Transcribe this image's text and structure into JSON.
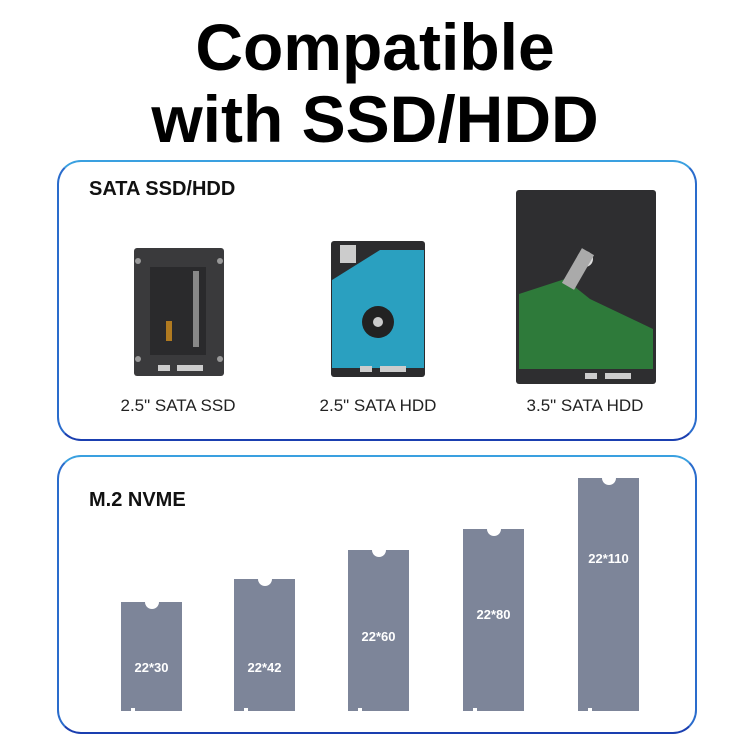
{
  "title": {
    "line1": "Compatible",
    "line2": "with SSD/HDD"
  },
  "sata": {
    "heading": "SATA SSD/HDD",
    "drives": [
      {
        "label": "2.5\" SATA SSD",
        "icon": "ssd-image"
      },
      {
        "label": "2.5\" SATA HDD",
        "icon": "hdd-2-5-image"
      },
      {
        "label": "3.5\" SATA HDD",
        "icon": "hdd-3-5-image"
      }
    ]
  },
  "m2": {
    "heading": "M.2 NVME",
    "board_color": "#7d8599",
    "boards": [
      {
        "label": "22*30"
      },
      {
        "label": "22*42"
      },
      {
        "label": "22*60"
      },
      {
        "label": "22*80"
      },
      {
        "label": "22*110"
      }
    ]
  }
}
